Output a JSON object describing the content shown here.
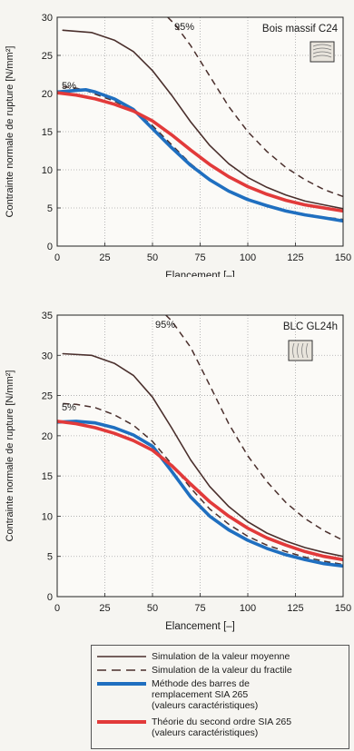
{
  "chart_data": [
    {
      "type": "line",
      "annotation": "Bois massif C24",
      "xlabel": "Elancement [–]",
      "ylabel": "Contrainte normale de rupture [N/mm²]",
      "xlim": [
        0,
        150
      ],
      "ylim": [
        0,
        30
      ],
      "xticks": [
        0,
        25,
        50,
        75,
        100,
        125,
        150
      ],
      "yticks": [
        0,
        5,
        10,
        15,
        20,
        25,
        30
      ],
      "label_95": "95%",
      "label_5": "5%",
      "series": [
        {
          "key": "mean",
          "style": "solid-brown",
          "x": [
            3,
            18,
            30,
            40,
            50,
            60,
            70,
            80,
            90,
            100,
            110,
            120,
            130,
            140,
            150
          ],
          "y": [
            28.3,
            28.0,
            27.0,
            25.5,
            23.0,
            19.8,
            16.3,
            13.2,
            10.8,
            9.0,
            7.7,
            6.7,
            5.9,
            5.4,
            4.9
          ]
        },
        {
          "key": "p95",
          "style": "dashed-brown",
          "x": [
            58,
            62,
            70,
            80,
            90,
            100,
            110,
            120,
            130,
            140,
            150
          ],
          "y": [
            30,
            29.0,
            26.3,
            22.3,
            18.3,
            15.0,
            12.4,
            10.3,
            8.7,
            7.4,
            6.5
          ]
        },
        {
          "key": "p5",
          "style": "dashed-brown",
          "x": [
            3,
            10,
            15,
            20,
            30,
            40,
            50,
            60,
            70,
            80,
            90,
            100,
            110,
            120,
            130,
            140,
            150
          ],
          "y": [
            20.9,
            20.7,
            20.4,
            19.9,
            19.0,
            17.8,
            15.8,
            13.3,
            10.8,
            8.8,
            7.3,
            6.2,
            5.4,
            4.7,
            4.2,
            3.8,
            3.5
          ]
        },
        {
          "key": "sia_bars",
          "style": "blue",
          "x": [
            0,
            10,
            15,
            20,
            30,
            40,
            50,
            60,
            70,
            80,
            90,
            100,
            110,
            120,
            130,
            140,
            150
          ],
          "y": [
            20.2,
            20.4,
            20.5,
            20.2,
            19.3,
            17.9,
            15.4,
            12.9,
            10.6,
            8.7,
            7.2,
            6.1,
            5.3,
            4.6,
            4.1,
            3.7,
            3.3
          ]
        },
        {
          "key": "second_order",
          "style": "red",
          "x": [
            0,
            10,
            20,
            30,
            40,
            50,
            60,
            70,
            80,
            90,
            100,
            110,
            120,
            130,
            140,
            150
          ],
          "y": [
            20.1,
            19.8,
            19.3,
            18.6,
            17.7,
            16.4,
            14.6,
            12.6,
            10.7,
            9.1,
            7.8,
            6.8,
            6.0,
            5.4,
            5.0,
            4.6
          ]
        }
      ]
    },
    {
      "type": "line",
      "annotation": "BLC GL24h",
      "xlabel": "Elancement [–]",
      "ylabel": "Contrainte normale de rupture [N/mm²]",
      "xlim": [
        0,
        150
      ],
      "ylim": [
        0,
        35
      ],
      "xticks": [
        0,
        25,
        50,
        75,
        100,
        125,
        150
      ],
      "yticks": [
        0,
        5,
        10,
        15,
        20,
        25,
        30,
        35
      ],
      "label_95": "95%",
      "label_5": "5%",
      "series": [
        {
          "key": "mean",
          "style": "solid-brown",
          "x": [
            3,
            18,
            30,
            40,
            50,
            60,
            70,
            80,
            90,
            100,
            110,
            120,
            130,
            140,
            150
          ],
          "y": [
            30.2,
            30.0,
            29.0,
            27.5,
            24.8,
            21.0,
            17.0,
            13.7,
            11.2,
            9.3,
            7.9,
            6.9,
            6.1,
            5.5,
            5.0
          ]
        },
        {
          "key": "p95",
          "style": "dashed-brown",
          "x": [
            57,
            60,
            70,
            80,
            90,
            100,
            110,
            120,
            130,
            140,
            150
          ],
          "y": [
            35,
            34.3,
            31.0,
            26.3,
            21.5,
            17.5,
            14.3,
            11.7,
            9.7,
            8.2,
            7.0
          ]
        },
        {
          "key": "p5",
          "style": "dashed-brown",
          "x": [
            3,
            10,
            20,
            30,
            40,
            50,
            60,
            70,
            80,
            90,
            100,
            110,
            120,
            130,
            140,
            150
          ],
          "y": [
            24.0,
            23.9,
            23.5,
            22.6,
            21.3,
            19.3,
            16.5,
            13.5,
            10.9,
            9.0,
            7.5,
            6.4,
            5.6,
            4.9,
            4.4,
            4.0
          ]
        },
        {
          "key": "sia_bars",
          "style": "blue",
          "x": [
            0,
            10,
            20,
            30,
            40,
            50,
            60,
            70,
            80,
            90,
            100,
            110,
            120,
            130,
            140,
            150
          ],
          "y": [
            21.7,
            21.8,
            21.6,
            21.0,
            20.1,
            18.7,
            15.6,
            12.4,
            10.0,
            8.3,
            7.0,
            6.0,
            5.2,
            4.6,
            4.1,
            3.8
          ]
        },
        {
          "key": "second_order",
          "style": "red",
          "x": [
            0,
            10,
            20,
            30,
            40,
            50,
            60,
            70,
            80,
            90,
            100,
            110,
            120,
            130,
            140,
            150
          ],
          "y": [
            21.8,
            21.5,
            21.0,
            20.3,
            19.4,
            18.2,
            16.3,
            14.0,
            11.8,
            10.0,
            8.5,
            7.3,
            6.4,
            5.6,
            5.0,
            4.6
          ]
        }
      ]
    }
  ],
  "legend": [
    {
      "style": "solid-brown",
      "label": "Simulation de la valeur moyenne"
    },
    {
      "style": "dashed-brown",
      "label": "Simulation de la valeur du fractile"
    },
    {
      "style": "blue",
      "label": "Méthode des barres de\nremplacement SIA 265\n(valeurs caractéristiques)"
    },
    {
      "style": "red",
      "label": "Théorie du second ordre SIA 265\n(valeurs caractéristiques)"
    }
  ],
  "colors": {
    "brown": "#4a2f2c",
    "blue": "#1f6fc0",
    "red": "#e23a3a",
    "grid": "#a8a8a8"
  }
}
